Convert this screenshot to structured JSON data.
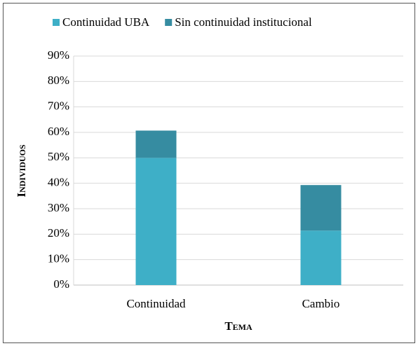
{
  "chart_data": {
    "type": "stacked_bar",
    "categories": [
      "Continuidad",
      "Cambio"
    ],
    "series": [
      {
        "name": "Continuidad UBA",
        "color": "#3eafc7",
        "values": [
          50,
          21.4
        ]
      },
      {
        "name": "Sin continuidad institucional",
        "color": "#368ca1",
        "values": [
          10.7,
          17.9
        ]
      }
    ],
    "x_label": "Tema",
    "y_label": "Individuos",
    "ylim": [
      0,
      90
    ],
    "yticks": [
      {
        "value": 0,
        "label": "0%"
      },
      {
        "value": 10,
        "label": "10%"
      },
      {
        "value": 20,
        "label": "20%"
      },
      {
        "value": 30,
        "label": "30%"
      },
      {
        "value": 40,
        "label": "40%"
      },
      {
        "value": 50,
        "label": "50%"
      },
      {
        "value": 60,
        "label": "60%"
      },
      {
        "value": 70,
        "label": "70%"
      },
      {
        "value": 80,
        "label": "80%"
      },
      {
        "value": 90,
        "label": "90%"
      }
    ],
    "grid": true,
    "legend": "top"
  }
}
